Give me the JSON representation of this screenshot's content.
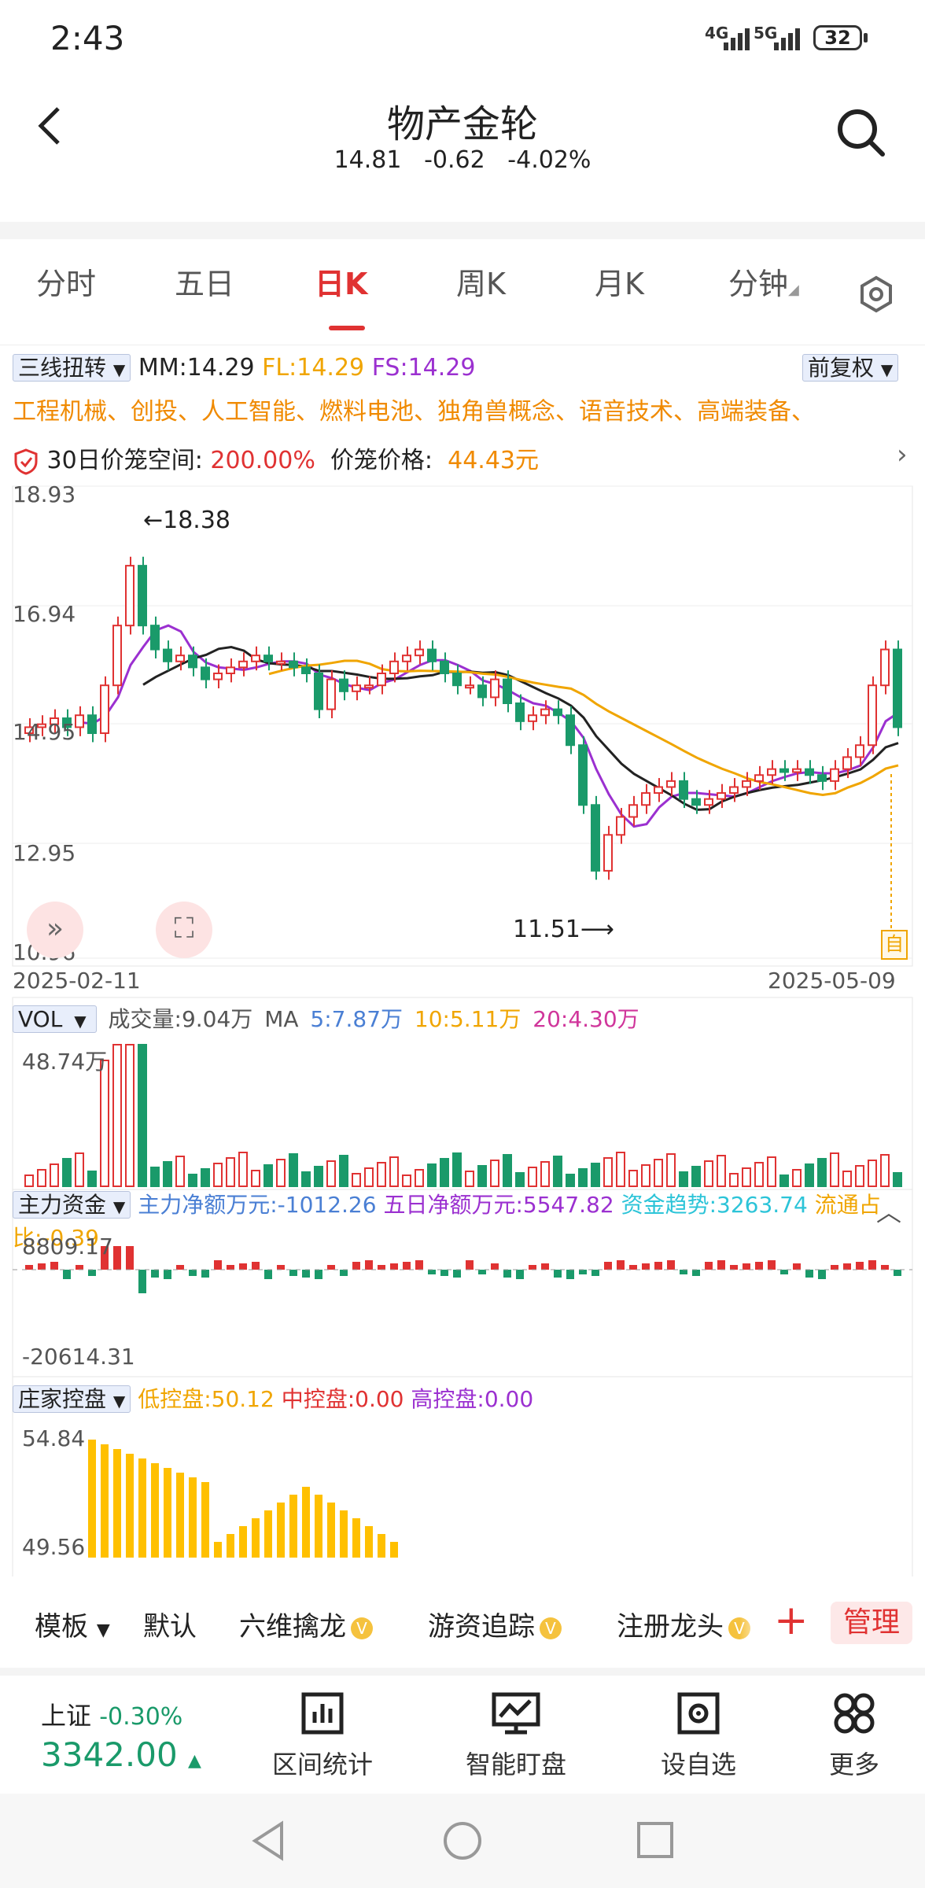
{
  "status_bar": {
    "time": "2:43",
    "network1": "4G",
    "network2": "5G",
    "battery": "32"
  },
  "header": {
    "title": "物产金轮",
    "price": "14.81",
    "change": "-0.62",
    "change_pct": "-4.02%"
  },
  "tabs": [
    {
      "label": "分时"
    },
    {
      "label": "五日"
    },
    {
      "label": "日K",
      "active": true
    },
    {
      "label": "周K"
    },
    {
      "label": "月K"
    },
    {
      "label": "分钟"
    }
  ],
  "indicator": {
    "selector": "三线扭转",
    "mm": "MM:14.29",
    "fl": "FL:14.29",
    "fs": "FS:14.29",
    "adjust": "前复权"
  },
  "tags": "工程机械、创投、人工智能、燃料电池、独角兽概念、语音技术、高端装备、",
  "cage": {
    "label": "30日价笼空间:",
    "value": "200.00%",
    "price_label": "价笼价格:",
    "price_value": "44.43元"
  },
  "kline": {
    "y_labels": [
      "18.93",
      "16.94",
      "14.95",
      "12.95",
      "10.96"
    ],
    "high_marker": "←18.38",
    "low_marker": "11.51⟶",
    "date_start": "2025-02-11",
    "date_end": "2025-05-09",
    "self_label": "自"
  },
  "volume": {
    "selector": "VOL",
    "amount": "成交量:9.04万",
    "ma": "MA",
    "ma5": "5:7.87万",
    "ma10": "10:5.11万",
    "ma20": "20:4.30万",
    "top_label": "48.74万"
  },
  "capital": {
    "selector": "主力资金",
    "net": "主力净额万元:-1012.26",
    "five_day": "五日净额万元:5547.82",
    "trend": "资金趋势:3263.74",
    "ratio": "流通占比:-0.39",
    "top_label": "8809.17",
    "bottom_label": "-20614.31"
  },
  "banker": {
    "selector": "庄家控盘",
    "low": "低控盘:50.12",
    "mid": "中控盘:0.00",
    "high": "高控盘:0.00",
    "top_label": "54.84",
    "bottom_label": "49.56"
  },
  "bottom_toolbar": {
    "template": "模板",
    "default": "默认",
    "item1": "六维擒龙",
    "item2": "游资追踪",
    "item3": "注册龙头",
    "v": "V",
    "manage": "管理"
  },
  "footer": {
    "index_name": "上证",
    "index_change": "-0.30%",
    "index_value": "3342.00",
    "items": [
      {
        "label": "区间统计"
      },
      {
        "label": "智能盯盘"
      },
      {
        "label": "设自选"
      },
      {
        "label": "更多"
      }
    ]
  },
  "colors": {
    "up": "#e03232",
    "down": "#1a9a6a",
    "ma_black": "#222222",
    "ma_orange": "#f0a500",
    "ma_purple": "#9b30d0"
  }
}
